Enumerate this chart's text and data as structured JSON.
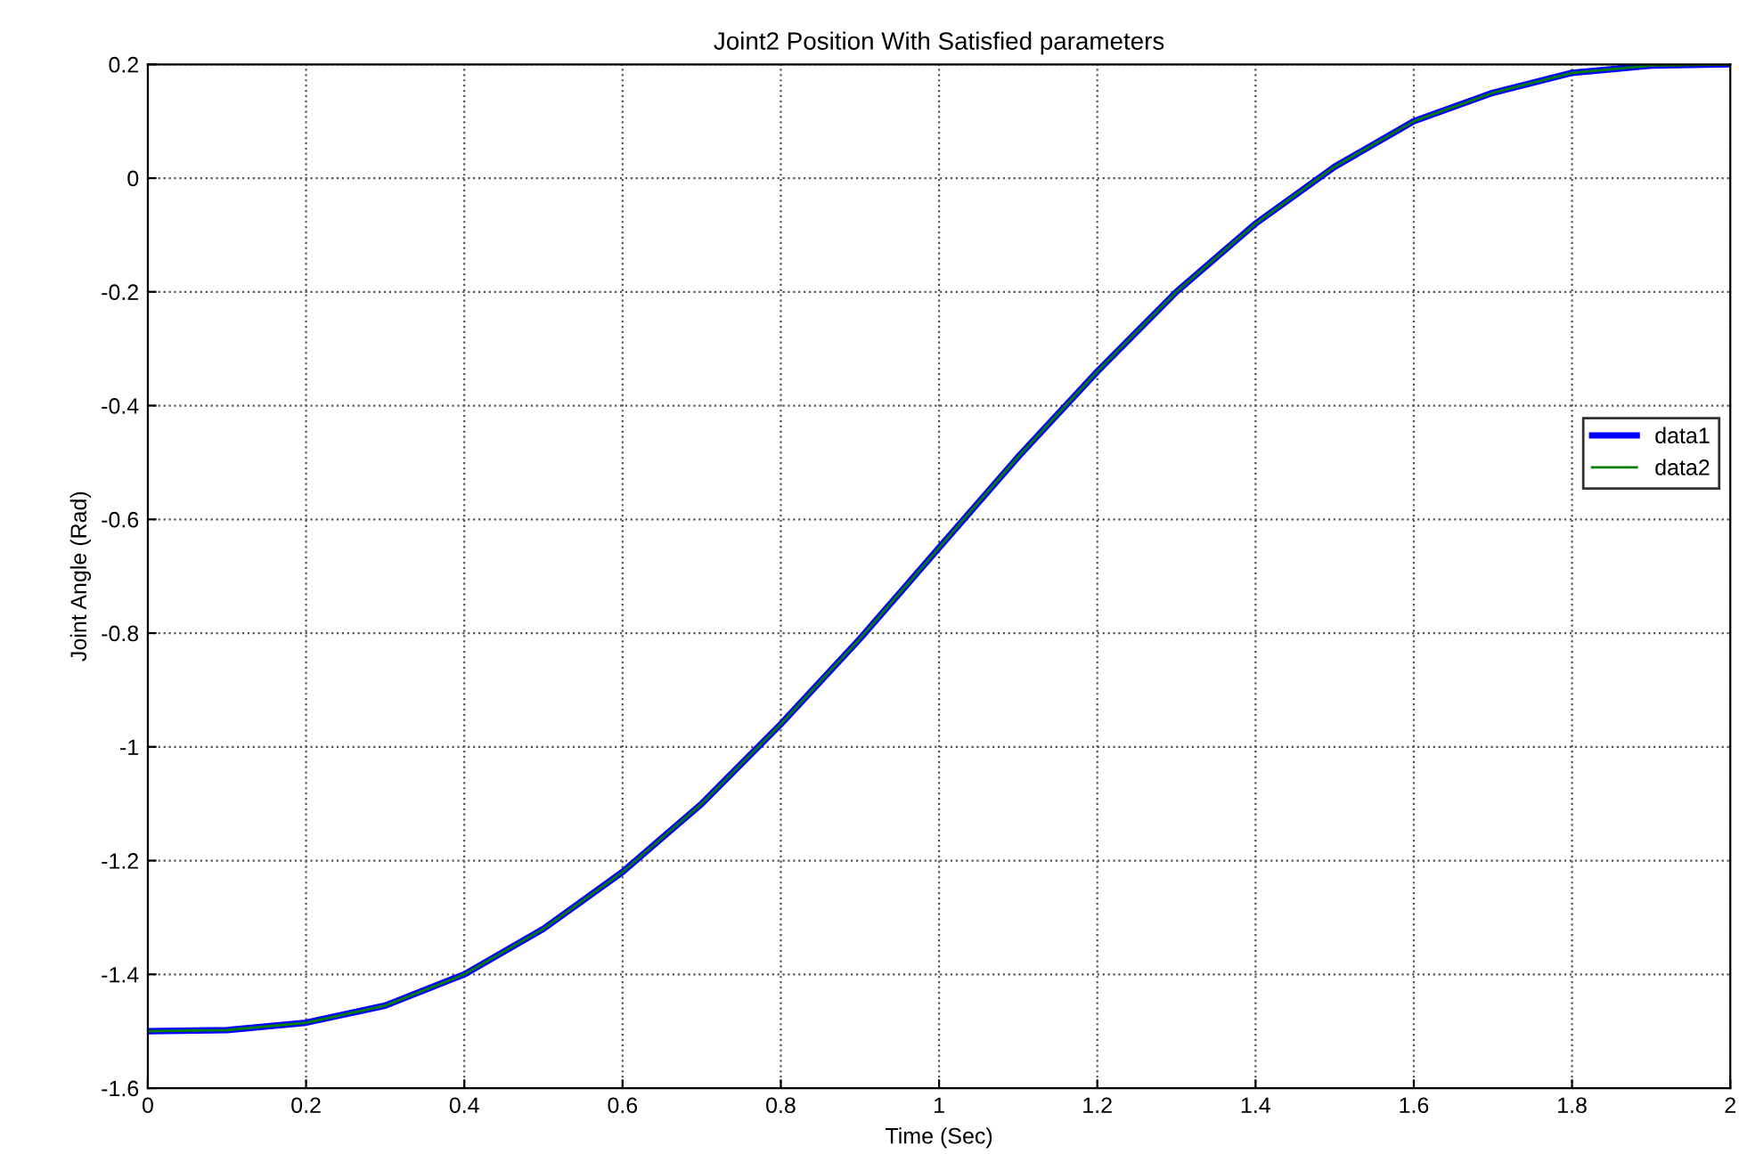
{
  "chart_data": {
    "type": "line",
    "title": "Joint2 Position With Satisfied parameters",
    "xlabel": "Time (Sec)",
    "ylabel": "Joint Angle (Rad)",
    "x": [
      0,
      0.1,
      0.2,
      0.3,
      0.4,
      0.5,
      0.6,
      0.7,
      0.8,
      0.9,
      1.0,
      1.1,
      1.2,
      1.3,
      1.4,
      1.5,
      1.6,
      1.7,
      1.8,
      1.9,
      2.0
    ],
    "series": [
      {
        "name": "data1",
        "color": "#0000ff",
        "values": [
          -1.5,
          -1.498,
          -1.485,
          -1.455,
          -1.4,
          -1.32,
          -1.22,
          -1.1,
          -0.96,
          -0.81,
          -0.65,
          -0.49,
          -0.34,
          -0.2,
          -0.08,
          0.02,
          0.1,
          0.15,
          0.185,
          0.198,
          0.2
        ]
      },
      {
        "name": "data2",
        "color": "#008000",
        "values": [
          -1.5,
          -1.498,
          -1.485,
          -1.455,
          -1.4,
          -1.32,
          -1.22,
          -1.1,
          -0.96,
          -0.81,
          -0.65,
          -0.49,
          -0.34,
          -0.2,
          -0.08,
          0.02,
          0.1,
          0.15,
          0.185,
          0.198,
          0.2
        ]
      }
    ],
    "xlim": [
      0,
      2
    ],
    "xticks": [
      0,
      0.2,
      0.4,
      0.6,
      0.8,
      1,
      1.2,
      1.4,
      1.6,
      1.8,
      2
    ],
    "ylim": [
      -1.6,
      0.2
    ],
    "yticks": [
      -1.6,
      -1.4,
      -1.2,
      -1,
      -0.8,
      -0.6,
      -0.4,
      -0.2,
      0,
      0.2
    ],
    "grid": true,
    "legend": "right",
    "line_style": "solid",
    "marker": "none"
  }
}
